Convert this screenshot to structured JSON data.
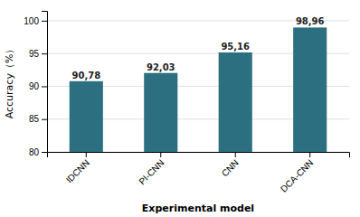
{
  "chart_data": {
    "type": "bar",
    "categories": [
      "IDCNN",
      "PI-CNN",
      "CNN",
      "DCA-CNN"
    ],
    "values": [
      90.78,
      92.03,
      95.16,
      98.96
    ],
    "value_labels": [
      "90,78",
      "92,03",
      "95,16",
      "98,96"
    ],
    "color": "#2b6f80",
    "xlabel": "Experimental model",
    "ylabel": "Accuracy（%）",
    "ylim": [
      80,
      101.5
    ],
    "yticks": [
      80,
      85,
      90,
      95,
      100
    ],
    "grid": true,
    "data_labels": true
  }
}
